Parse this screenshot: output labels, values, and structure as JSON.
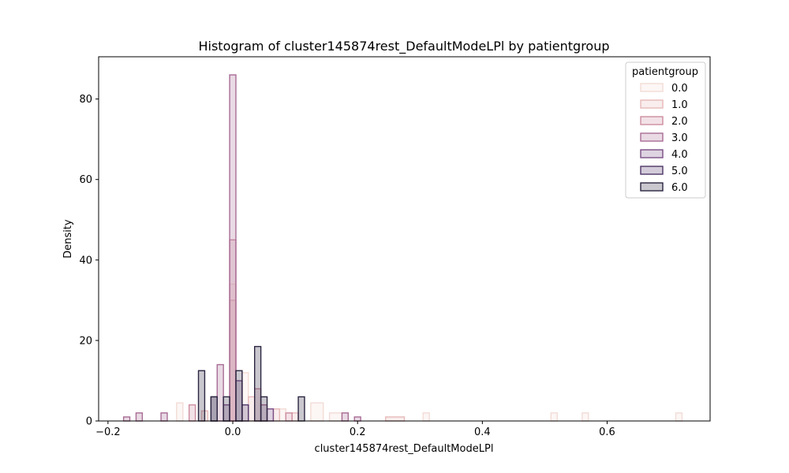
{
  "chart_data": {
    "type": "bar",
    "subtype": "step-histogram",
    "title": "Histogram of cluster145874rest_DefaultModeLPl by patientgroup",
    "xlabel": "cluster145874rest_DefaultModeLPl",
    "ylabel": "Density",
    "xlim": [
      -0.215,
      0.765
    ],
    "ylim": [
      0,
      90.5
    ],
    "xticks": [
      -0.2,
      0.0,
      0.2,
      0.4,
      0.6
    ],
    "xtick_labels": [
      "−0.2",
      "0.0",
      "0.2",
      "0.4",
      "0.6"
    ],
    "yticks": [
      0,
      20,
      40,
      60,
      80
    ],
    "grid": false,
    "legend": {
      "title": "patientgroup",
      "position": "top-right"
    },
    "series": [
      {
        "name": "0.0",
        "color": "#f2dcd6",
        "bins": [
          [
            -0.09,
            -0.08,
            4.5
          ],
          [
            -0.005,
            0.005,
            34.0
          ],
          [
            0.015,
            0.025,
            12.0
          ],
          [
            0.075,
            0.085,
            3.0
          ],
          [
            0.125,
            0.145,
            4.5
          ],
          [
            0.155,
            0.175,
            2.0
          ],
          [
            0.305,
            0.315,
            2.0
          ],
          [
            0.51,
            0.52,
            2.0
          ],
          [
            0.56,
            0.57,
            2.0
          ],
          [
            0.71,
            0.72,
            2.0
          ]
        ]
      },
      {
        "name": "1.0",
        "color": "#e6b9b9",
        "bins": [
          [
            -0.05,
            -0.04,
            2.5
          ],
          [
            -0.005,
            0.005,
            30.0
          ],
          [
            0.025,
            0.035,
            6.0
          ],
          [
            0.065,
            0.075,
            3.0
          ],
          [
            0.095,
            0.105,
            2.0
          ],
          [
            0.245,
            0.275,
            1.0
          ]
        ]
      },
      {
        "name": "2.0",
        "color": "#cc8d9f",
        "bins": [
          [
            -0.07,
            -0.06,
            4.0
          ],
          [
            -0.005,
            0.005,
            45.0
          ],
          [
            0.035,
            0.045,
            8.0
          ],
          [
            0.085,
            0.095,
            2.0
          ]
        ]
      },
      {
        "name": "3.0",
        "color": "#a86c95",
        "bins": [
          [
            -0.175,
            -0.165,
            1.0
          ],
          [
            -0.155,
            -0.145,
            2.0
          ],
          [
            -0.115,
            -0.105,
            2.0
          ],
          [
            -0.025,
            -0.015,
            14.0
          ],
          [
            -0.005,
            0.005,
            86.0
          ],
          [
            0.045,
            0.055,
            4.0
          ],
          [
            0.175,
            0.185,
            2.0
          ],
          [
            0.195,
            0.205,
            1.0
          ]
        ]
      },
      {
        "name": "4.0",
        "color": "#7b4e86",
        "bins": [
          [
            -0.015,
            -0.005,
            4.0
          ],
          [
            0.005,
            0.015,
            10.0
          ],
          [
            0.055,
            0.065,
            3.0
          ]
        ]
      },
      {
        "name": "5.0",
        "color": "#4e3567",
        "bins": [
          [
            -0.035,
            -0.025,
            6.0
          ],
          [
            0.015,
            0.025,
            4.0
          ]
        ]
      },
      {
        "name": "6.0",
        "color": "#2b2540",
        "bins": [
          [
            -0.055,
            -0.045,
            12.5
          ],
          [
            -0.035,
            -0.025,
            6.0
          ],
          [
            -0.015,
            -0.005,
            6.0
          ],
          [
            0.005,
            0.015,
            12.5
          ],
          [
            0.035,
            0.045,
            18.5
          ],
          [
            0.045,
            0.055,
            6.0
          ],
          [
            0.105,
            0.115,
            6.0
          ]
        ]
      }
    ]
  }
}
